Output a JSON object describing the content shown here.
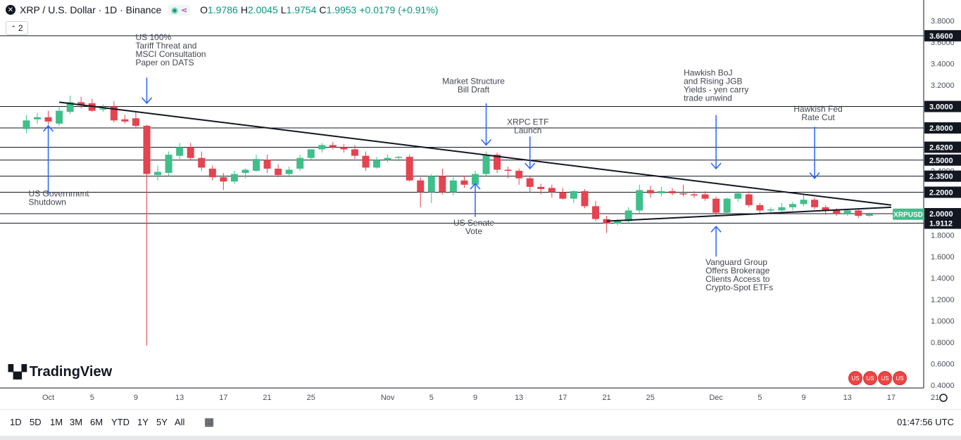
{
  "header": {
    "symbol": "XRP / U.S. Dollar · 1D · Binance",
    "open_label": "O",
    "open": "1.9786",
    "high_label": "H",
    "high": "2.0045",
    "low_label": "L",
    "low": "1.9754",
    "close_label": "C",
    "close": "1.9953",
    "change": "+0.0179 (+0.91%)",
    "indicator_count": "2"
  },
  "brand": "TradingView",
  "timeframes": [
    "1D",
    "5D",
    "1M",
    "3M",
    "6M",
    "YTD",
    "1Y",
    "5Y",
    "All"
  ],
  "clock": "01:47:56 UTC",
  "colors": {
    "up": "#3fbf8a",
    "down": "#e5434f",
    "line": "#131722",
    "annotation": "#2962ff",
    "price_tag": "#3fbf8a"
  },
  "chart_data": {
    "type": "candlestick",
    "symbol": "XRPUSD",
    "y_range": [
      0.4,
      3.9
    ],
    "y_ticks": [
      "0.4000",
      "0.6000",
      "0.8000",
      "1.0000",
      "1.2000",
      "1.4000",
      "1.6000",
      "1.8000",
      "2.0000",
      "2.2000",
      "2.4000",
      "2.6000",
      "2.8000",
      "3.0000",
      "3.2000",
      "3.4000",
      "3.6000",
      "3.8000"
    ],
    "x_ticks": [
      {
        "label": "Oct",
        "i": 1
      },
      {
        "label": "5",
        "i": 5
      },
      {
        "label": "9",
        "i": 9
      },
      {
        "label": "13",
        "i": 13
      },
      {
        "label": "17",
        "i": 17
      },
      {
        "label": "21",
        "i": 21
      },
      {
        "label": "25",
        "i": 25
      },
      {
        "label": "Nov",
        "i": 32
      },
      {
        "label": "5",
        "i": 36
      },
      {
        "label": "9",
        "i": 40
      },
      {
        "label": "13",
        "i": 44
      },
      {
        "label": "17",
        "i": 48
      },
      {
        "label": "21",
        "i": 52
      },
      {
        "label": "25",
        "i": 56
      },
      {
        "label": "Dec",
        "i": 62
      },
      {
        "label": "5",
        "i": 66
      },
      {
        "label": "9",
        "i": 70
      },
      {
        "label": "13",
        "i": 74
      },
      {
        "label": "17",
        "i": 78
      },
      {
        "label": "21",
        "i": 82
      }
    ],
    "levels": [
      {
        "value": 3.66,
        "label": "3.6600"
      },
      {
        "value": 3.0,
        "label": "3.0000"
      },
      {
        "value": 2.8,
        "label": "2.8000"
      },
      {
        "value": 2.62,
        "label": "2.6200"
      },
      {
        "value": 2.5,
        "label": "2.5000"
      },
      {
        "value": 2.35,
        "label": "2.3500"
      },
      {
        "value": 2.2,
        "label": "2.2000"
      },
      {
        "value": 2.0,
        "label": "2.0000"
      },
      {
        "value": 1.9112,
        "label": "1.9112"
      }
    ],
    "last_price_label": "XRPUSD",
    "last_price": 1.9953,
    "trendlines": [
      {
        "from": {
          "i": 2,
          "v": 3.04
        },
        "to": {
          "i": 78,
          "v": 2.08
        }
      },
      {
        "from": {
          "i": 52,
          "v": 1.93
        },
        "to": {
          "i": 78,
          "v": 2.06
        }
      }
    ],
    "candles": [
      {
        "i": -1,
        "o": 2.79,
        "h": 2.92,
        "l": 2.75,
        "c": 2.87
      },
      {
        "i": 0,
        "o": 2.88,
        "h": 2.94,
        "l": 2.84,
        "c": 2.9
      },
      {
        "i": 1,
        "o": 2.9,
        "h": 2.96,
        "l": 2.83,
        "c": 2.86
      },
      {
        "i": 2,
        "o": 2.84,
        "h": 3.0,
        "l": 2.82,
        "c": 2.96
      },
      {
        "i": 3,
        "o": 2.95,
        "h": 3.1,
        "l": 2.93,
        "c": 3.04
      },
      {
        "i": 4,
        "o": 3.04,
        "h": 3.09,
        "l": 2.98,
        "c": 3.01
      },
      {
        "i": 5,
        "o": 3.03,
        "h": 3.07,
        "l": 2.95,
        "c": 2.96
      },
      {
        "i": 6,
        "o": 2.97,
        "h": 3.02,
        "l": 2.95,
        "c": 2.98
      },
      {
        "i": 7,
        "o": 3.0,
        "h": 3.05,
        "l": 2.85,
        "c": 2.87
      },
      {
        "i": 8,
        "o": 2.88,
        "h": 2.92,
        "l": 2.84,
        "c": 2.86
      },
      {
        "i": 9,
        "o": 2.89,
        "h": 2.95,
        "l": 2.8,
        "c": 2.82
      },
      {
        "i": 10,
        "o": 2.82,
        "h": 2.83,
        "l": 0.77,
        "c": 2.37
      },
      {
        "i": 11,
        "o": 2.36,
        "h": 2.45,
        "l": 2.31,
        "c": 2.39
      },
      {
        "i": 12,
        "o": 2.38,
        "h": 2.58,
        "l": 2.35,
        "c": 2.55
      },
      {
        "i": 13,
        "o": 2.54,
        "h": 2.66,
        "l": 2.51,
        "c": 2.62
      },
      {
        "i": 14,
        "o": 2.62,
        "h": 2.66,
        "l": 2.5,
        "c": 2.52
      },
      {
        "i": 15,
        "o": 2.52,
        "h": 2.58,
        "l": 2.4,
        "c": 2.43
      },
      {
        "i": 16,
        "o": 2.42,
        "h": 2.45,
        "l": 2.31,
        "c": 2.34
      },
      {
        "i": 17,
        "o": 2.34,
        "h": 2.38,
        "l": 2.22,
        "c": 2.3
      },
      {
        "i": 18,
        "o": 2.3,
        "h": 2.4,
        "l": 2.28,
        "c": 2.37
      },
      {
        "i": 19,
        "o": 2.38,
        "h": 2.42,
        "l": 2.33,
        "c": 2.41
      },
      {
        "i": 20,
        "o": 2.4,
        "h": 2.55,
        "l": 2.39,
        "c": 2.51
      },
      {
        "i": 21,
        "o": 2.5,
        "h": 2.55,
        "l": 2.38,
        "c": 2.42
      },
      {
        "i": 22,
        "o": 2.42,
        "h": 2.46,
        "l": 2.34,
        "c": 2.36
      },
      {
        "i": 23,
        "o": 2.37,
        "h": 2.44,
        "l": 2.34,
        "c": 2.41
      },
      {
        "i": 24,
        "o": 2.42,
        "h": 2.55,
        "l": 2.4,
        "c": 2.52
      },
      {
        "i": 25,
        "o": 2.52,
        "h": 2.6,
        "l": 2.5,
        "c": 2.6
      },
      {
        "i": 26,
        "o": 2.6,
        "h": 2.66,
        "l": 2.57,
        "c": 2.64
      },
      {
        "i": 27,
        "o": 2.64,
        "h": 2.67,
        "l": 2.6,
        "c": 2.62
      },
      {
        "i": 28,
        "o": 2.62,
        "h": 2.65,
        "l": 2.57,
        "c": 2.6
      },
      {
        "i": 29,
        "o": 2.6,
        "h": 2.64,
        "l": 2.51,
        "c": 2.54
      },
      {
        "i": 30,
        "o": 2.54,
        "h": 2.58,
        "l": 2.4,
        "c": 2.43
      },
      {
        "i": 31,
        "o": 2.43,
        "h": 2.53,
        "l": 2.42,
        "c": 2.5
      },
      {
        "i": 32,
        "o": 2.5,
        "h": 2.55,
        "l": 2.48,
        "c": 2.52
      },
      {
        "i": 33,
        "o": 2.52,
        "h": 2.54,
        "l": 2.49,
        "c": 2.53
      },
      {
        "i": 34,
        "o": 2.53,
        "h": 2.55,
        "l": 2.3,
        "c": 2.31
      },
      {
        "i": 35,
        "o": 2.31,
        "h": 2.34,
        "l": 2.06,
        "c": 2.2
      },
      {
        "i": 36,
        "o": 2.2,
        "h": 2.37,
        "l": 2.1,
        "c": 2.35
      },
      {
        "i": 37,
        "o": 2.35,
        "h": 2.42,
        "l": 2.18,
        "c": 2.2
      },
      {
        "i": 38,
        "o": 2.2,
        "h": 2.34,
        "l": 2.17,
        "c": 2.31
      },
      {
        "i": 39,
        "o": 2.31,
        "h": 2.35,
        "l": 2.24,
        "c": 2.27
      },
      {
        "i": 40,
        "o": 2.27,
        "h": 2.4,
        "l": 2.22,
        "c": 2.37
      },
      {
        "i": 41,
        "o": 2.37,
        "h": 2.58,
        "l": 2.35,
        "c": 2.55
      },
      {
        "i": 42,
        "o": 2.55,
        "h": 2.57,
        "l": 2.38,
        "c": 2.41
      },
      {
        "i": 43,
        "o": 2.41,
        "h": 2.44,
        "l": 2.33,
        "c": 2.4
      },
      {
        "i": 44,
        "o": 2.4,
        "h": 2.42,
        "l": 2.27,
        "c": 2.33
      },
      {
        "i": 45,
        "o": 2.33,
        "h": 2.35,
        "l": 2.2,
        "c": 2.25
      },
      {
        "i": 46,
        "o": 2.25,
        "h": 2.28,
        "l": 2.18,
        "c": 2.23
      },
      {
        "i": 47,
        "o": 2.24,
        "h": 2.27,
        "l": 2.15,
        "c": 2.2
      },
      {
        "i": 48,
        "o": 2.2,
        "h": 2.24,
        "l": 2.13,
        "c": 2.14
      },
      {
        "i": 49,
        "o": 2.14,
        "h": 2.22,
        "l": 2.1,
        "c": 2.21
      },
      {
        "i": 50,
        "o": 2.21,
        "h": 2.23,
        "l": 2.05,
        "c": 2.07
      },
      {
        "i": 51,
        "o": 2.07,
        "h": 2.12,
        "l": 1.93,
        "c": 1.95
      },
      {
        "i": 52,
        "o": 1.95,
        "h": 1.98,
        "l": 1.82,
        "c": 1.91
      },
      {
        "i": 53,
        "o": 1.91,
        "h": 1.95,
        "l": 1.89,
        "c": 1.93
      },
      {
        "i": 54,
        "o": 1.93,
        "h": 2.06,
        "l": 1.91,
        "c": 2.03
      },
      {
        "i": 55,
        "o": 2.03,
        "h": 2.27,
        "l": 2.0,
        "c": 2.22
      },
      {
        "i": 56,
        "o": 2.22,
        "h": 2.26,
        "l": 2.15,
        "c": 2.19
      },
      {
        "i": 57,
        "o": 2.19,
        "h": 2.25,
        "l": 2.16,
        "c": 2.21
      },
      {
        "i": 58,
        "o": 2.21,
        "h": 2.24,
        "l": 2.17,
        "c": 2.19
      },
      {
        "i": 59,
        "o": 2.19,
        "h": 2.27,
        "l": 2.16,
        "c": 2.18
      },
      {
        "i": 60,
        "o": 2.18,
        "h": 2.21,
        "l": 2.15,
        "c": 2.17
      },
      {
        "i": 61,
        "o": 2.18,
        "h": 2.21,
        "l": 2.12,
        "c": 2.14
      },
      {
        "i": 62,
        "o": 2.14,
        "h": 2.16,
        "l": 1.98,
        "c": 2.01
      },
      {
        "i": 63,
        "o": 2.01,
        "h": 2.15,
        "l": 2.0,
        "c": 2.14
      },
      {
        "i": 64,
        "o": 2.14,
        "h": 2.21,
        "l": 2.11,
        "c": 2.19
      },
      {
        "i": 65,
        "o": 2.18,
        "h": 2.21,
        "l": 2.06,
        "c": 2.08
      },
      {
        "i": 66,
        "o": 2.08,
        "h": 2.1,
        "l": 2.0,
        "c": 2.03
      },
      {
        "i": 67,
        "o": 2.03,
        "h": 2.06,
        "l": 2.01,
        "c": 2.04
      },
      {
        "i": 68,
        "o": 2.03,
        "h": 2.1,
        "l": 2.02,
        "c": 2.06
      },
      {
        "i": 69,
        "o": 2.06,
        "h": 2.11,
        "l": 2.03,
        "c": 2.09
      },
      {
        "i": 70,
        "o": 2.09,
        "h": 2.18,
        "l": 2.07,
        "c": 2.13
      },
      {
        "i": 71,
        "o": 2.13,
        "h": 2.15,
        "l": 2.04,
        "c": 2.06
      },
      {
        "i": 72,
        "o": 2.06,
        "h": 2.08,
        "l": 1.99,
        "c": 2.03
      },
      {
        "i": 73,
        "o": 2.03,
        "h": 2.05,
        "l": 1.98,
        "c": 2.0
      },
      {
        "i": 74,
        "o": 2.0,
        "h": 2.04,
        "l": 1.98,
        "c": 2.03
      },
      {
        "i": 75,
        "o": 2.03,
        "h": 2.04,
        "l": 1.96,
        "c": 1.98
      },
      {
        "i": 76,
        "o": 1.98,
        "h": 2.01,
        "l": 1.97,
        "c": 1.995
      }
    ],
    "annotations": [
      {
        "id": "ann-us-gov",
        "text": [
          "US Government",
          "Shutdown"
        ],
        "x_i": 1,
        "arrow": "up",
        "tip_v": 2.82,
        "tail_v": 2.18,
        "text_v": 2.16,
        "align": "left",
        "dx": -28
      },
      {
        "id": "ann-tariff",
        "text": [
          "US 100%",
          "Tariff Threat and",
          "MSCI Consultation",
          "Paper on DATS"
        ],
        "x_i": 10,
        "arrow": "down",
        "tip_v": 3.03,
        "tail_v": 3.27,
        "text_v": 3.62,
        "align": "left",
        "dx": -16
      },
      {
        "id": "ann-market-structure",
        "text": [
          "Market Structure",
          "Bill Draft"
        ],
        "x_i": 41,
        "arrow": "down",
        "tip_v": 2.64,
        "tail_v": 3.03,
        "text_v": 3.21,
        "align": "center",
        "dx": -18
      },
      {
        "id": "ann-xrpc-etf",
        "text": [
          "XRPC ETF",
          "Launch"
        ],
        "x_i": 45,
        "arrow": "down",
        "tip_v": 2.42,
        "tail_v": 2.72,
        "text_v": 2.83,
        "align": "center",
        "dx": -3
      },
      {
        "id": "ann-senate",
        "text": [
          "US Senate",
          "Vote"
        ],
        "x_i": 40,
        "arrow": "up",
        "tip_v": 2.28,
        "tail_v": 1.97,
        "text_v": 1.89,
        "align": "center",
        "dx": -2
      },
      {
        "id": "ann-boj",
        "text": [
          "Hawkish BoJ",
          "and Rising JGB",
          "Yields - yen carry",
          "trade unwind"
        ],
        "x_i": 62,
        "arrow": "down",
        "tip_v": 2.42,
        "tail_v": 2.92,
        "text_v": 3.29,
        "align": "left",
        "dx": -46
      },
      {
        "id": "ann-fed",
        "text": [
          "Hawkish Fed",
          "Rate Cut"
        ],
        "x_i": 71,
        "arrow": "down",
        "tip_v": 2.33,
        "tail_v": 2.81,
        "text_v": 2.95,
        "align": "center",
        "dx": 5
      },
      {
        "id": "ann-vanguard",
        "text": [
          "Vanguard Group",
          "Offers Brokerage",
          "Clients Access to",
          "Crypto-Spot ETFs"
        ],
        "x_i": 62,
        "arrow": "up",
        "tip_v": 1.88,
        "tail_v": 1.6,
        "text_v": 1.52,
        "align": "left",
        "dx": -15
      }
    ]
  }
}
